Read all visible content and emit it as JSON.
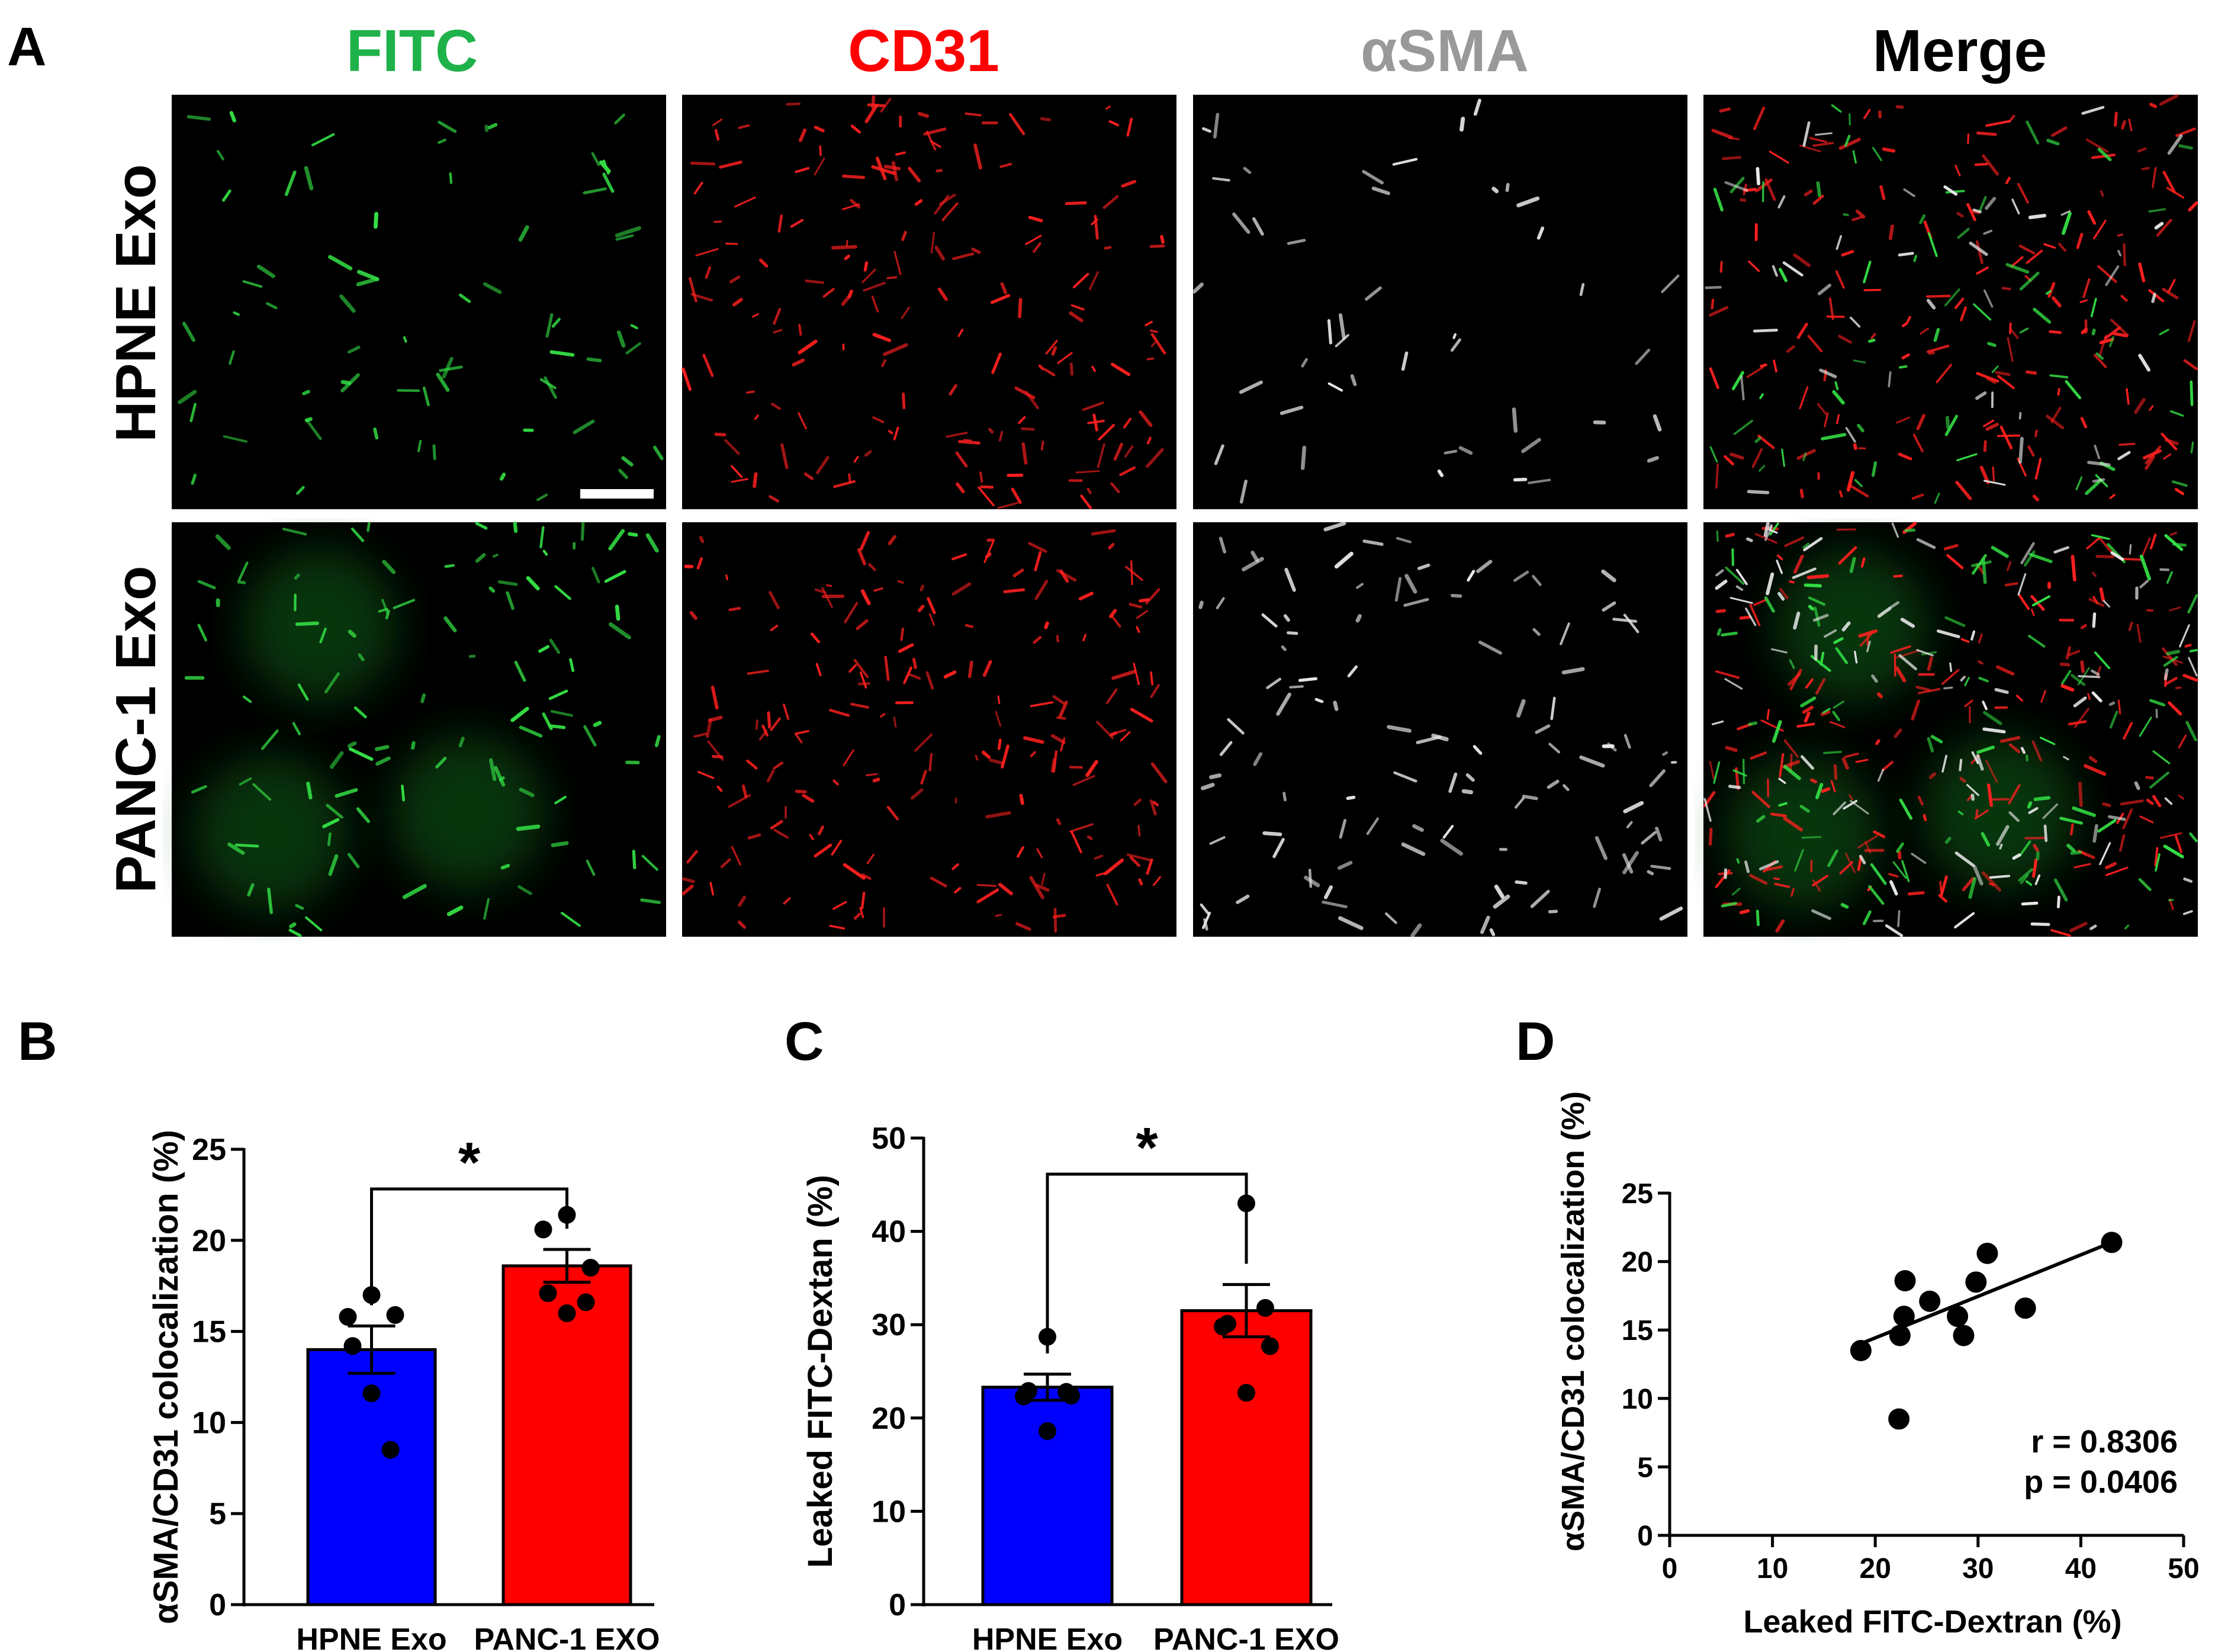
{
  "panel_letters": {
    "a": "A",
    "b": "B",
    "c": "C",
    "d": "D"
  },
  "channels": [
    {
      "label": "FITC",
      "color": "#1fb24a"
    },
    {
      "label": "CD31",
      "color": "#ff0000"
    },
    {
      "label": "αSMA",
      "color": "#999999"
    },
    {
      "label": "Merge",
      "color": "#000000"
    }
  ],
  "rows": [
    {
      "label": "HPNE Exo"
    },
    {
      "label": "PANC-1 Exo"
    }
  ],
  "chart_data": [
    {
      "type": "bar",
      "panel": "B",
      "categories": [
        "HPNE Exo",
        "PANC-1 EXO"
      ],
      "values": [
        14.0,
        18.6
      ],
      "sem": [
        1.3,
        0.9
      ],
      "colors": [
        "#0000ff",
        "#ff0000"
      ],
      "points": [
        [
          17.0,
          15.8,
          15.9,
          14.2,
          11.6,
          8.5
        ],
        [
          21.4,
          20.6,
          18.5,
          17.1,
          16.0,
          16.6
        ]
      ],
      "ylabel": "αSMA/CD31 colocalization (%)",
      "ylim": [
        0,
        25
      ],
      "yticks": [
        0,
        5,
        10,
        15,
        20,
        25
      ],
      "significance": "*"
    },
    {
      "type": "bar",
      "panel": "C",
      "categories": [
        "HPNE Exo",
        "PANC-1 EXO"
      ],
      "values": [
        23.3,
        31.5
      ],
      "sem": [
        1.4,
        2.8
      ],
      "colors": [
        "#0000ff",
        "#ff0000"
      ],
      "points": [
        [
          28.7,
          22.3,
          22.4,
          22.9,
          18.6,
          22.8
        ],
        [
          43.0,
          29.8,
          27.7,
          30.1,
          22.7,
          31.8
        ]
      ],
      "ylabel": "Leaked FITC-Dextan (%)",
      "ylim": [
        0,
        50
      ],
      "yticks": [
        0,
        10,
        20,
        30,
        40,
        50
      ],
      "significance": "*"
    },
    {
      "type": "scatter",
      "panel": "D",
      "x": [
        18.6,
        22.3,
        22.4,
        22.8,
        22.9,
        25.3,
        28.0,
        28.6,
        29.8,
        30.9,
        34.6,
        43.0
      ],
      "y": [
        13.5,
        8.5,
        14.6,
        16.0,
        18.6,
        17.1,
        16.0,
        14.6,
        18.5,
        20.6,
        16.6,
        21.4
      ],
      "fit_line": {
        "x": [
          18.6,
          43.0
        ],
        "y": [
          14.0,
          21.4
        ]
      },
      "xlabel": "Leaked FITC-Dextran (%)",
      "ylabel": "αSMA/CD31 colocalization (%)",
      "xlim": [
        0,
        50
      ],
      "ylim": [
        0,
        25
      ],
      "xticks": [
        0,
        10,
        20,
        30,
        40,
        50
      ],
      "yticks": [
        0,
        5,
        10,
        15,
        20,
        25
      ],
      "stats": [
        "r = 0.8306",
        "p = 0.0406"
      ]
    }
  ]
}
